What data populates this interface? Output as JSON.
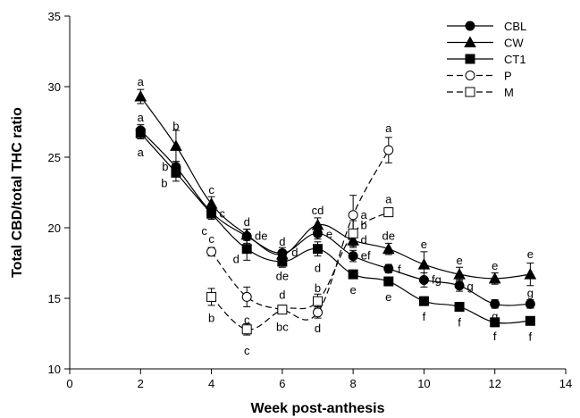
{
  "chart_data": {
    "type": "line",
    "title": "",
    "xlabel": "Week post-anthesis",
    "ylabel": "Total CBD/total THC ratio",
    "xlim": [
      0,
      14
    ],
    "ylim": [
      10,
      35
    ],
    "xticks": [
      0,
      2,
      4,
      6,
      8,
      10,
      12,
      14
    ],
    "yticks": [
      10,
      15,
      20,
      25,
      30,
      35
    ],
    "grid": false,
    "legend_position": "top-right",
    "series": [
      {
        "name": "CBL",
        "marker": "circle",
        "filled": true,
        "dash": "solid",
        "x": [
          2,
          3,
          4,
          5,
          6,
          7,
          8,
          9,
          10,
          11,
          12,
          13
        ],
        "y": [
          26.9,
          24.3,
          21.1,
          19.4,
          18.2,
          19.6,
          18.0,
          17.1,
          16.3,
          15.9,
          14.6,
          14.6
        ],
        "err": [
          0.4,
          0.4,
          0.3,
          0.5,
          0.4,
          0.4,
          0.4,
          0.3,
          0.5,
          0.4,
          0.3,
          0.3
        ],
        "labels": [
          {
            "text": "a",
            "dx": 0,
            "dy": -14
          },
          {
            "text": "b",
            "dx": -12,
            "dy": 0
          },
          {
            "text": "c",
            "dx": 12,
            "dy": 2
          },
          {
            "text": "de",
            "dx": 16,
            "dy": 0
          },
          {
            "text": "de",
            "dx": 0,
            "dy": 26
          },
          {
            "text": "e",
            "dx": 13,
            "dy": 1
          },
          {
            "text": "ef",
            "dx": 14,
            "dy": 0
          },
          {
            "text": "f",
            "dx": 12,
            "dy": 1
          },
          {
            "text": "fg",
            "dx": 14,
            "dy": 0
          },
          {
            "text": "g",
            "dx": 12,
            "dy": 1
          },
          {
            "text": "g",
            "dx": 0,
            "dy": 14
          },
          {
            "text": "g",
            "dx": 0,
            "dy": -12
          }
        ]
      },
      {
        "name": "CW",
        "marker": "triangle",
        "filled": true,
        "dash": "solid",
        "x": [
          2,
          3,
          4,
          5,
          6,
          7,
          8,
          9,
          10,
          11,
          12,
          13
        ],
        "y": [
          29.3,
          25.8,
          21.7,
          19.5,
          18.1,
          20.2,
          19.1,
          18.5,
          17.4,
          16.7,
          16.4,
          16.7
        ],
        "err": [
          0.5,
          1.1,
          0.5,
          0.4,
          0.3,
          0.5,
          0.5,
          0.4,
          0.9,
          0.5,
          0.4,
          0.8
        ],
        "labels": [
          {
            "text": "a",
            "dx": 0,
            "dy": -16
          },
          {
            "text": "b",
            "dx": 0,
            "dy": -22
          },
          {
            "text": "c",
            "dx": 0,
            "dy": -15
          },
          {
            "text": "d",
            "dx": 0,
            "dy": -14
          },
          {
            "text": "d",
            "dx": 0,
            "dy": -14
          },
          {
            "text": "cd",
            "dx": 0,
            "dy": -16
          },
          {
            "text": "d",
            "dx": 12,
            "dy": 0
          },
          {
            "text": "de",
            "dx": 0,
            "dy": -14
          },
          {
            "text": "e",
            "dx": 0,
            "dy": -22
          },
          {
            "text": "e",
            "dx": 0,
            "dy": -15
          },
          {
            "text": "e",
            "dx": 0,
            "dy": -14
          },
          {
            "text": "e",
            "dx": 0,
            "dy": -22
          }
        ]
      },
      {
        "name": "CT1",
        "marker": "square",
        "filled": true,
        "dash": "solid",
        "x": [
          2,
          3,
          4,
          5,
          6,
          7,
          8,
          9,
          10,
          11,
          12,
          13
        ],
        "y": [
          26.7,
          23.9,
          21.0,
          18.5,
          17.6,
          18.5,
          16.7,
          16.2,
          14.8,
          14.4,
          13.3,
          13.4
        ],
        "err": [
          0.4,
          0.6,
          0.4,
          0.8,
          0.4,
          0.5,
          0.3,
          0.3,
          0.3,
          0.3,
          0.3,
          0.3
        ],
        "labels": [
          {
            "text": "a",
            "dx": 0,
            "dy": 22
          },
          {
            "text": "b",
            "dx": -13,
            "dy": 12
          },
          {
            "text": "c",
            "dx": -8,
            "dy": 20
          },
          {
            "text": "d",
            "dx": -12,
            "dy": 12
          },
          {
            "text": "d",
            "dx": 14,
            "dy": -10
          },
          {
            "text": "d",
            "dx": 0,
            "dy": 22
          },
          {
            "text": "e",
            "dx": 0,
            "dy": 18
          },
          {
            "text": "e",
            "dx": 0,
            "dy": 18
          },
          {
            "text": "f",
            "dx": 0,
            "dy": 18
          },
          {
            "text": "f",
            "dx": 0,
            "dy": 18
          },
          {
            "text": "f",
            "dx": 0,
            "dy": 16
          },
          {
            "text": "f",
            "dx": 0,
            "dy": 18
          }
        ]
      },
      {
        "name": "P",
        "marker": "circle",
        "filled": false,
        "dash": "dashed",
        "x": [
          4,
          5,
          6,
          7,
          8,
          9
        ],
        "y": [
          18.3,
          15.1,
          14.2,
          14.0,
          20.9,
          25.5
        ],
        "err": [
          0.3,
          0.7,
          0.3,
          0.4,
          1.4,
          0.9
        ],
        "labels": [
          {
            "text": "c",
            "dx": 0,
            "dy": -14
          },
          {
            "text": "c",
            "dx": 0,
            "dy": 26
          },
          {
            "text": "d",
            "dx": 0,
            "dy": -16
          },
          {
            "text": "d",
            "dx": 0,
            "dy": 18
          },
          {
            "text": "a",
            "dx": 12,
            "dy": 0
          },
          {
            "text": "a",
            "dx": 0,
            "dy": -24
          }
        ]
      },
      {
        "name": "M",
        "marker": "square",
        "filled": false,
        "dash": "dashed",
        "x": [
          4,
          5,
          6,
          7,
          8,
          9
        ],
        "y": [
          15.1,
          12.8,
          14.2,
          14.8,
          19.6,
          21.1
        ],
        "err": [
          0.6,
          0.4,
          0.3,
          0.5,
          0.9,
          0.3
        ],
        "labels": [
          {
            "text": "b",
            "dx": 0,
            "dy": 24
          },
          {
            "text": "c",
            "dx": 0,
            "dy": 24
          },
          {
            "text": "bc",
            "dx": 0,
            "dy": 20
          },
          {
            "text": "b",
            "dx": 0,
            "dy": -14
          },
          {
            "text": "b",
            "dx": 12,
            "dy": -9
          },
          {
            "text": "a",
            "dx": 0,
            "dy": -14
          }
        ]
      }
    ]
  }
}
